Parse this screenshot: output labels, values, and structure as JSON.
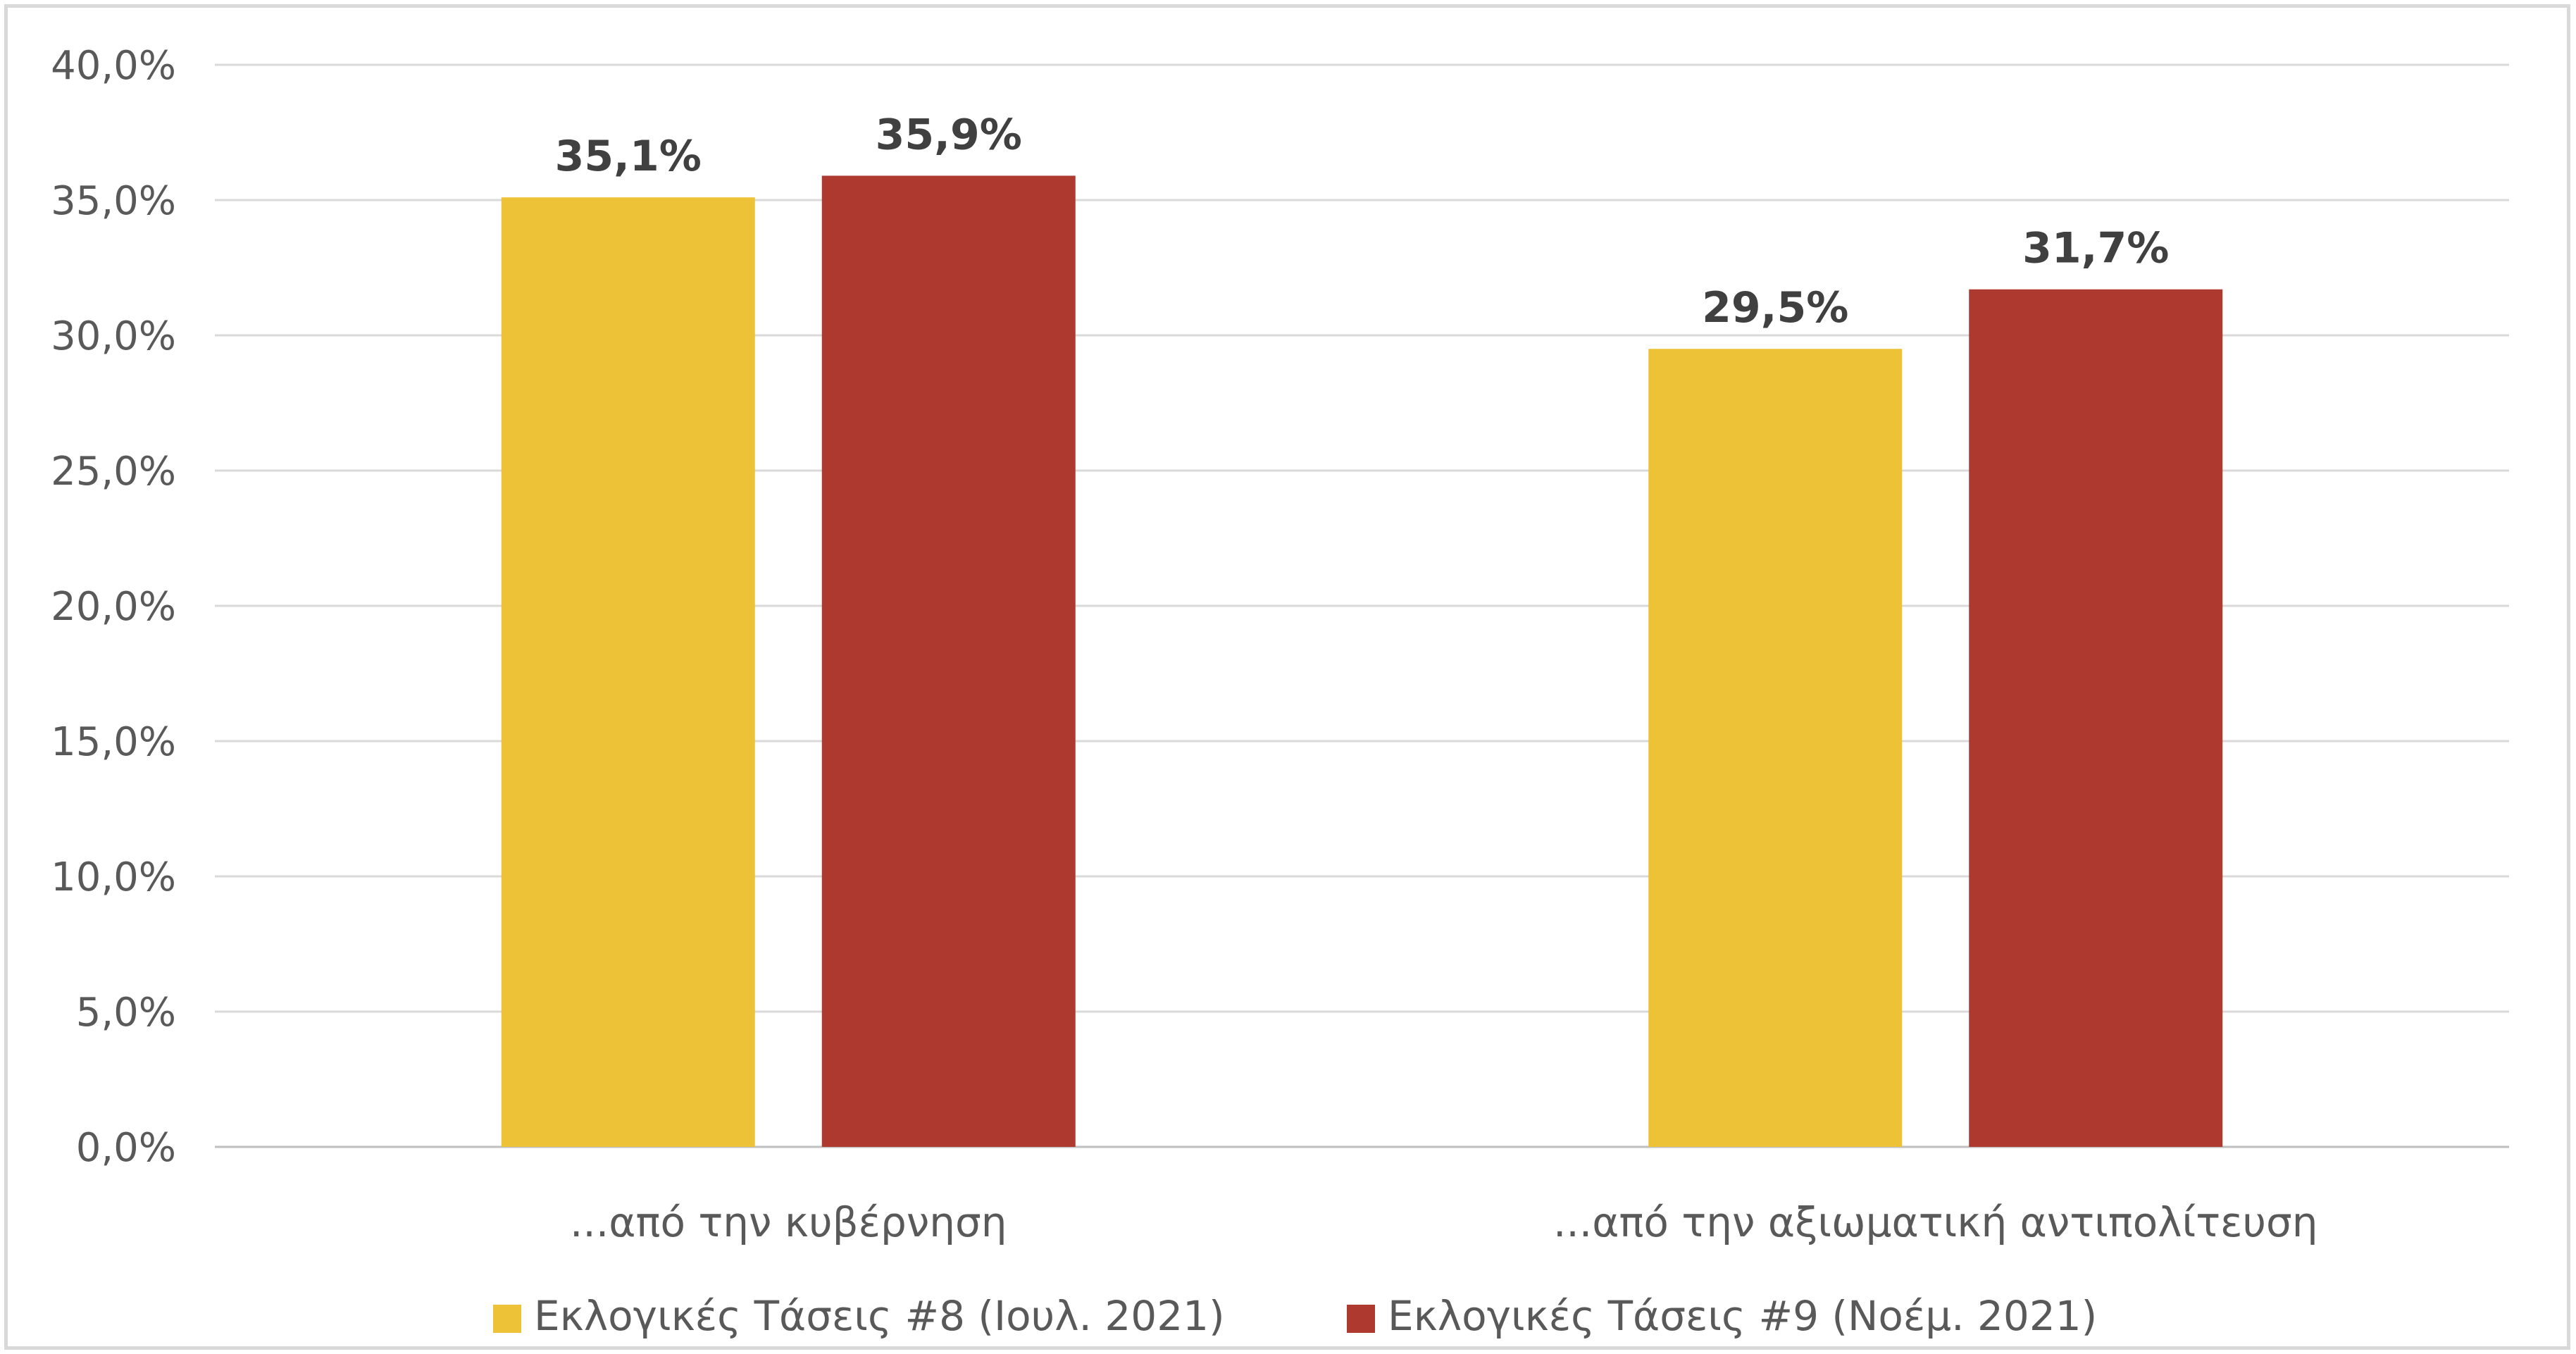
{
  "chart_data": {
    "type": "bar",
    "title": "",
    "xlabel": "",
    "ylabel": "",
    "ylim": [
      0,
      40
    ],
    "yticks": [
      0,
      5,
      10,
      15,
      20,
      25,
      30,
      35,
      40
    ],
    "ytick_labels": [
      "0,0%",
      "5,0%",
      "10,0%",
      "15,0%",
      "20,0%",
      "25,0%",
      "30,0%",
      "35,0%",
      "40,0%"
    ],
    "categories": [
      "...από την κυβέρνηση",
      "...από την αξιωματική αντιπολίτευση"
    ],
    "series": [
      {
        "name": "Εκλογικές Τάσεις #8 (Ιουλ. 2021)",
        "values": [
          35.1,
          29.5
        ],
        "labels": [
          "35,1%",
          "29,5%"
        ],
        "color": "#EDC237"
      },
      {
        "name": "Εκλογικές Τάσεις #9 (Νοέμ. 2021)",
        "values": [
          35.9,
          31.7
        ],
        "labels": [
          "35,9%",
          "31,7%"
        ],
        "color": "#AE3A2F"
      }
    ],
    "grid": true,
    "legend_position": "bottom"
  }
}
